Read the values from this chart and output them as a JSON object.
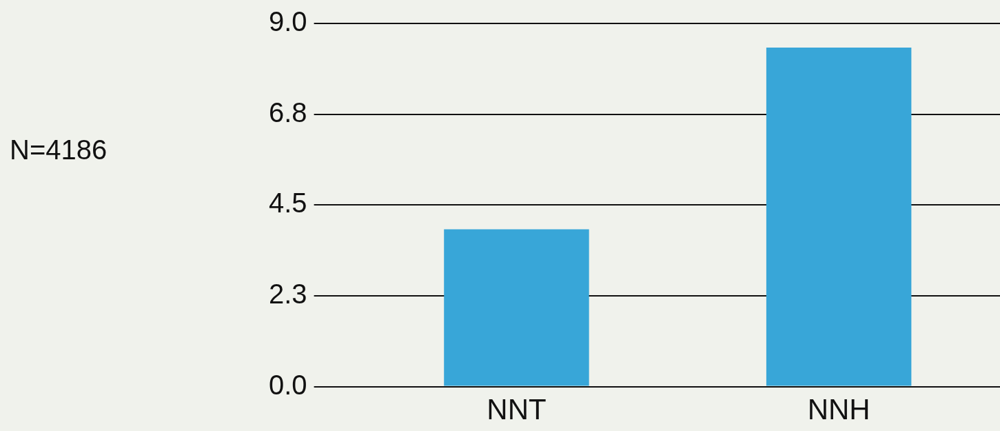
{
  "chart_data": {
    "type": "bar",
    "categories": [
      "NNT",
      "NNH"
    ],
    "values": [
      3.9,
      8.4
    ],
    "color": "#38a6d8",
    "ylim": [
      0,
      9
    ],
    "yticks": [
      {
        "value": 0,
        "label": "0.0"
      },
      {
        "value": 2.25,
        "label": "2.3"
      },
      {
        "value": 4.5,
        "label": "4.5"
      },
      {
        "value": 6.75,
        "label": "6.8"
      },
      {
        "value": 9,
        "label": "9.0"
      }
    ],
    "grid": "y",
    "annotations": [
      "N=4186"
    ]
  }
}
